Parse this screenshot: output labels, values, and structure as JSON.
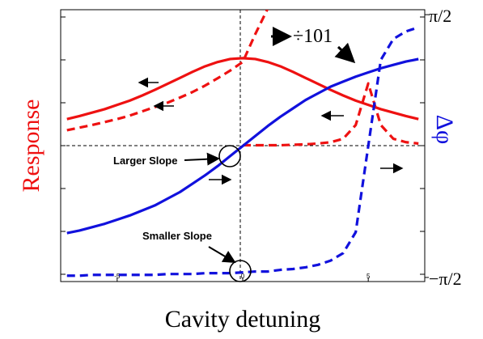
{
  "chart_data": {
    "type": "line",
    "xlabel": "Cavity detuning",
    "ylabel": "Response",
    "y2label": "Δφ",
    "annotations": [
      "÷101",
      "Larger Slope",
      "Smaller Slope"
    ],
    "x": [
      -7,
      -6.5,
      -6,
      -5.5,
      -5,
      -4.5,
      -4,
      -3.5,
      -3,
      -2.5,
      -2,
      -1.5,
      -1,
      -0.5,
      0,
      0.5,
      1,
      1.5,
      2,
      2.5,
      3,
      3.5,
      4,
      4.5,
      5,
      5.5,
      6,
      6.5,
      7
    ],
    "xlim": [
      -7.25,
      7.25
    ],
    "xticks": [
      -5,
      0,
      5
    ],
    "ylim": [
      -3.17,
      3.17
    ],
    "yticks": [
      -3,
      -2,
      -1,
      0,
      1,
      2,
      3
    ],
    "y2lim": [
      -1.62,
      1.63
    ],
    "y2ticks": [
      {
        "value": 1.5708,
        "label": "π/2"
      },
      {
        "value": -1.5708,
        "label": "−π/2"
      }
    ],
    "series": [
      {
        "color": "#ee1111",
        "style": "solid",
        "values": [
          0.62,
          0.69,
          0.77,
          0.85,
          0.95,
          1.05,
          1.17,
          1.3,
          1.44,
          1.58,
          1.72,
          1.85,
          1.95,
          2.02,
          2.04,
          2.02,
          1.95,
          1.85,
          1.72,
          1.58,
          1.44,
          1.3,
          1.17,
          1.05,
          0.95,
          0.85,
          0.77,
          0.69,
          0.62
        ]
      },
      {
        "color": "#ee1111",
        "style": "dashed",
        "values": [
          0.36,
          0.42,
          0.48,
          0.55,
          0.62,
          0.7,
          0.8,
          0.9,
          1.0,
          1.12,
          1.25,
          1.4,
          1.57,
          1.75,
          1.95,
          2.6,
          3.2,
          null,
          null,
          null,
          null,
          null,
          null,
          null,
          null,
          null,
          null,
          null,
          null
        ]
      },
      {
        "color": "#ee1111",
        "style": "dashed",
        "values": [
          null,
          null,
          null,
          null,
          null,
          null,
          null,
          null,
          null,
          null,
          null,
          null,
          null,
          null,
          0.01,
          0.01,
          0.01,
          0.01,
          0.02,
          0.03,
          0.05,
          0.08,
          0.16,
          0.48,
          1.45,
          0.48,
          0.16,
          0.08,
          0.05
        ]
      },
      {
        "color": "#1111dd",
        "style": "solid",
        "axis": "y2",
        "values": [
          -1.04,
          -1.01,
          -0.97,
          -0.93,
          -0.88,
          -0.83,
          -0.77,
          -0.71,
          -0.63,
          -0.55,
          -0.45,
          -0.35,
          -0.24,
          -0.12,
          0,
          0.12,
          0.24,
          0.35,
          0.45,
          0.55,
          0.63,
          0.71,
          0.77,
          0.83,
          0.88,
          0.93,
          0.97,
          1.01,
          1.04
        ]
      },
      {
        "color": "#1111dd",
        "style": "dashed",
        "axis": "y2",
        "values": [
          -1.55,
          -1.55,
          -1.54,
          -1.54,
          -1.54,
          -1.54,
          -1.54,
          -1.54,
          -1.53,
          -1.53,
          -1.53,
          -1.52,
          -1.52,
          -1.52,
          -1.51,
          -1.5,
          -1.5,
          -1.48,
          -1.47,
          -1.45,
          -1.42,
          -1.37,
          -1.28,
          -1.03,
          0,
          1.03,
          1.28,
          1.37,
          1.42
        ]
      }
    ]
  }
}
